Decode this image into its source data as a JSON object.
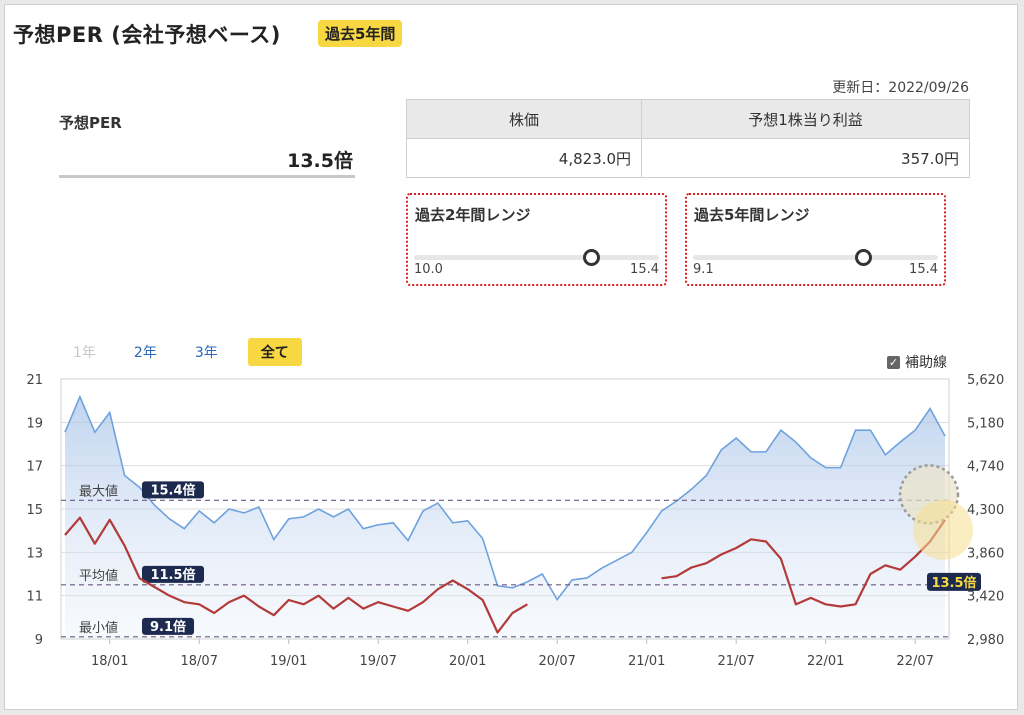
{
  "header": {
    "title": "予想PER (会社予想ベース)",
    "badge": "過去5年間"
  },
  "updated": "更新日：2022/09/26",
  "per": {
    "label": "予想PER",
    "value": "13.5倍"
  },
  "table": {
    "headers": [
      "株価",
      "予想1株当り利益"
    ],
    "values": [
      "4,823.0円",
      "357.0円"
    ]
  },
  "ranges": [
    {
      "title": "過去2年間レンジ",
      "min": "10.0",
      "max": "15.4",
      "position": 0.73
    },
    {
      "title": "過去5年間レンジ",
      "min": "9.1",
      "max": "15.4",
      "position": 0.7
    }
  ],
  "periods": [
    "1年",
    "2年",
    "3年",
    "全て"
  ],
  "aux_label": "補助線",
  "colors": {
    "per_line": "#b23a38",
    "price_line": "#6ea2de",
    "accent": "#f7d842",
    "label_bg": "#1d2a4f"
  },
  "chart_data": {
    "type": "line",
    "x": [
      "17/10",
      "17/11",
      "17/12",
      "18/01",
      "18/02",
      "18/03",
      "18/04",
      "18/05",
      "18/06",
      "18/07",
      "18/08",
      "18/09",
      "18/10",
      "18/11",
      "18/12",
      "19/01",
      "19/02",
      "19/03",
      "19/04",
      "19/05",
      "19/06",
      "19/07",
      "19/08",
      "19/09",
      "19/10",
      "19/11",
      "19/12",
      "20/01",
      "20/02",
      "20/03",
      "20/04",
      "20/05",
      "20/06",
      "20/07",
      "20/08",
      "20/09",
      "20/10",
      "20/11",
      "20/12",
      "21/01",
      "21/02",
      "21/03",
      "21/04",
      "21/05",
      "21/06",
      "21/07",
      "21/08",
      "21/09",
      "21/10",
      "21/11",
      "21/12",
      "22/01",
      "22/02",
      "22/03",
      "22/04",
      "22/05",
      "22/06",
      "22/07",
      "22/08",
      "22/09"
    ],
    "x_ticks": [
      "18/01",
      "18/07",
      "19/01",
      "19/07",
      "20/01",
      "20/07",
      "21/01",
      "21/07",
      "22/01",
      "22/07"
    ],
    "series": [
      {
        "axis": "left",
        "values": [
          13.8,
          14.6,
          13.4,
          14.5,
          13.3,
          11.8,
          11.4,
          11.0,
          10.7,
          10.6,
          10.2,
          10.7,
          11.0,
          10.5,
          10.1,
          10.8,
          10.6,
          11.0,
          10.4,
          10.9,
          10.4,
          10.7,
          10.5,
          10.3,
          10.7,
          11.3,
          11.7,
          11.3,
          10.8,
          9.3,
          10.2,
          10.6,
          null,
          null,
          null,
          null,
          null,
          null,
          null,
          null,
          11.8,
          11.9,
          12.3,
          12.5,
          12.9,
          13.2,
          13.6,
          13.5,
          12.7,
          10.6,
          10.9,
          10.6,
          10.5,
          10.6,
          12.0,
          12.4,
          12.2,
          12.8,
          13.5,
          14.5
        ]
      },
      {
        "axis": "right",
        "values": [
          5080,
          5440,
          5080,
          5280,
          4640,
          4520,
          4340,
          4200,
          4100,
          4280,
          4160,
          4300,
          4260,
          4320,
          3990,
          4200,
          4220,
          4300,
          4220,
          4300,
          4100,
          4140,
          4160,
          3980,
          4280,
          4360,
          4160,
          4180,
          4000,
          3520,
          3500,
          3560,
          3640,
          3380,
          3580,
          3600,
          3700,
          3780,
          3860,
          4060,
          4280,
          4380,
          4500,
          4640,
          4900,
          5020,
          4880,
          4880,
          5100,
          4980,
          4820,
          4720,
          4720,
          5100,
          5100,
          4850,
          4980,
          5100,
          5320,
          5040
        ]
      }
    ],
    "y_left": {
      "ticks": [
        "21",
        "19",
        "17",
        "15",
        "13",
        "11",
        "9"
      ],
      "min": 9,
      "max": 21
    },
    "y_right": {
      "ticks": [
        "5,620",
        "5,180",
        "4,740",
        "4,300",
        "3,860",
        "3,420",
        "2,980"
      ],
      "min": 2980,
      "max": 5620
    },
    "annotations": [
      {
        "text": "最大値",
        "badge": "15.4倍",
        "y": 15.4
      },
      {
        "text": "平均値",
        "badge": "11.5倍",
        "y": 11.5
      },
      {
        "text": "最小値",
        "badge": "9.1倍",
        "y": 9.1
      }
    ],
    "current_label": "13.5倍"
  }
}
